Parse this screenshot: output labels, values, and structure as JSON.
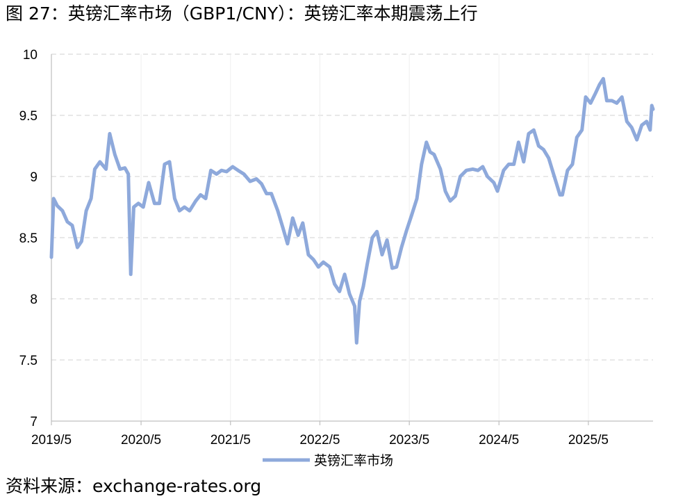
{
  "title": "图 27：英镑汇率市场（GBP1/CNY）：英镑汇率本期震荡上行",
  "source": "资料来源：exchange-rates.org",
  "colors": {
    "series": "#8EA9DB",
    "grid": "#D9D9D9",
    "axis": "#BFBFBF"
  },
  "chart_data": {
    "type": "line",
    "title": "",
    "xlabel": "",
    "ylabel": "",
    "ylim": [
      7,
      10
    ],
    "yticks": [
      "10",
      "9.5",
      "9",
      "8.5",
      "8",
      "7.5",
      "7"
    ],
    "xticks": [
      "2019/5",
      "2020/5",
      "2021/5",
      "2022/5",
      "2023/5",
      "2024/5",
      "2025/5"
    ],
    "xlim": [
      "2019-05-01",
      "2026-01-20"
    ],
    "grid": "horizontal dashed",
    "legend_position": "bottom",
    "series": [
      {
        "name": "英镑汇率市场",
        "points": [
          [
            "2019-05-01",
            8.34
          ],
          [
            "2019-05-10",
            8.82
          ],
          [
            "2019-05-25",
            8.76
          ],
          [
            "2019-06-15",
            8.72
          ],
          [
            "2019-07-05",
            8.63
          ],
          [
            "2019-07-25",
            8.6
          ],
          [
            "2019-08-15",
            8.42
          ],
          [
            "2019-09-01",
            8.47
          ],
          [
            "2019-09-20",
            8.72
          ],
          [
            "2019-10-10",
            8.82
          ],
          [
            "2019-10-25",
            9.06
          ],
          [
            "2019-11-15",
            9.12
          ],
          [
            "2019-12-10",
            9.06
          ],
          [
            "2019-12-25",
            9.35
          ],
          [
            "2020-01-15",
            9.18
          ],
          [
            "2020-02-05",
            9.06
          ],
          [
            "2020-02-25",
            9.07
          ],
          [
            "2020-03-10",
            9.02
          ],
          [
            "2020-03-20",
            8.2
          ],
          [
            "2020-04-01",
            8.75
          ],
          [
            "2020-04-20",
            8.78
          ],
          [
            "2020-05-10",
            8.75
          ],
          [
            "2020-06-01",
            8.95
          ],
          [
            "2020-06-25",
            8.78
          ],
          [
            "2020-07-15",
            8.78
          ],
          [
            "2020-08-05",
            9.1
          ],
          [
            "2020-08-25",
            9.12
          ],
          [
            "2020-09-15",
            8.82
          ],
          [
            "2020-10-05",
            8.72
          ],
          [
            "2020-10-25",
            8.75
          ],
          [
            "2020-11-15",
            8.72
          ],
          [
            "2020-12-10",
            8.8
          ],
          [
            "2020-12-30",
            8.85
          ],
          [
            "2021-01-20",
            8.82
          ],
          [
            "2021-02-10",
            9.05
          ],
          [
            "2021-03-05",
            9.02
          ],
          [
            "2021-03-25",
            9.05
          ],
          [
            "2021-04-15",
            9.04
          ],
          [
            "2021-05-10",
            9.08
          ],
          [
            "2021-06-01",
            9.05
          ],
          [
            "2021-06-25",
            9.02
          ],
          [
            "2021-07-20",
            8.96
          ],
          [
            "2021-08-15",
            8.98
          ],
          [
            "2021-09-05",
            8.94
          ],
          [
            "2021-09-25",
            8.86
          ],
          [
            "2021-10-15",
            8.86
          ],
          [
            "2021-11-10",
            8.72
          ],
          [
            "2021-12-01",
            8.58
          ],
          [
            "2021-12-20",
            8.45
          ],
          [
            "2022-01-10",
            8.66
          ],
          [
            "2022-02-01",
            8.52
          ],
          [
            "2022-02-20",
            8.62
          ],
          [
            "2022-03-15",
            8.36
          ],
          [
            "2022-04-05",
            8.32
          ],
          [
            "2022-04-25",
            8.26
          ],
          [
            "2022-05-15",
            8.3
          ],
          [
            "2022-06-10",
            8.26
          ],
          [
            "2022-06-30",
            8.12
          ],
          [
            "2022-07-20",
            8.06
          ],
          [
            "2022-08-10",
            8.2
          ],
          [
            "2022-08-30",
            8.04
          ],
          [
            "2022-09-20",
            7.94
          ],
          [
            "2022-09-28",
            7.64
          ],
          [
            "2022-10-10",
            7.98
          ],
          [
            "2022-10-25",
            8.1
          ],
          [
            "2022-11-10",
            8.28
          ],
          [
            "2022-12-01",
            8.5
          ],
          [
            "2022-12-20",
            8.55
          ],
          [
            "2023-01-10",
            8.36
          ],
          [
            "2023-01-30",
            8.48
          ],
          [
            "2023-02-20",
            8.25
          ],
          [
            "2023-03-10",
            8.26
          ],
          [
            "2023-03-30",
            8.42
          ],
          [
            "2023-04-20",
            8.56
          ],
          [
            "2023-05-10",
            8.68
          ],
          [
            "2023-06-01",
            8.82
          ],
          [
            "2023-06-20",
            9.1
          ],
          [
            "2023-07-10",
            9.28
          ],
          [
            "2023-07-25",
            9.2
          ],
          [
            "2023-08-10",
            9.18
          ],
          [
            "2023-09-05",
            9.06
          ],
          [
            "2023-09-25",
            8.88
          ],
          [
            "2023-10-15",
            8.8
          ],
          [
            "2023-11-05",
            8.84
          ],
          [
            "2023-11-25",
            9.0
          ],
          [
            "2023-12-20",
            9.05
          ],
          [
            "2024-01-15",
            9.06
          ],
          [
            "2024-02-05",
            9.05
          ],
          [
            "2024-02-25",
            9.08
          ],
          [
            "2024-03-15",
            9.0
          ],
          [
            "2024-04-10",
            8.95
          ],
          [
            "2024-04-25",
            8.88
          ],
          [
            "2024-05-20",
            9.05
          ],
          [
            "2024-06-10",
            9.1
          ],
          [
            "2024-07-01",
            9.1
          ],
          [
            "2024-07-20",
            9.28
          ],
          [
            "2024-08-10",
            9.12
          ],
          [
            "2024-08-30",
            9.35
          ],
          [
            "2024-09-20",
            9.38
          ],
          [
            "2024-10-10",
            9.25
          ],
          [
            "2024-10-30",
            9.22
          ],
          [
            "2024-11-20",
            9.15
          ],
          [
            "2024-12-10",
            9.02
          ],
          [
            "2025-01-05",
            8.85
          ],
          [
            "2025-01-15",
            8.85
          ],
          [
            "2025-02-05",
            9.05
          ],
          [
            "2025-02-25",
            9.1
          ],
          [
            "2025-03-15",
            9.32
          ],
          [
            "2025-04-05",
            9.38
          ],
          [
            "2025-04-20",
            9.65
          ],
          [
            "2025-05-10",
            9.6
          ],
          [
            "2025-05-30",
            9.68
          ],
          [
            "2025-06-15",
            9.75
          ],
          [
            "2025-07-01",
            9.8
          ],
          [
            "2025-07-15",
            9.62
          ],
          [
            "2025-08-05",
            9.62
          ],
          [
            "2025-08-25",
            9.6
          ],
          [
            "2025-09-15",
            9.65
          ],
          [
            "2025-10-05",
            9.45
          ],
          [
            "2025-10-25",
            9.4
          ],
          [
            "2025-11-15",
            9.3
          ],
          [
            "2025-12-05",
            9.42
          ],
          [
            "2025-12-25",
            9.45
          ],
          [
            "2026-01-08",
            9.38
          ],
          [
            "2026-01-15",
            9.58
          ],
          [
            "2026-01-20",
            9.55
          ]
        ]
      }
    ]
  }
}
